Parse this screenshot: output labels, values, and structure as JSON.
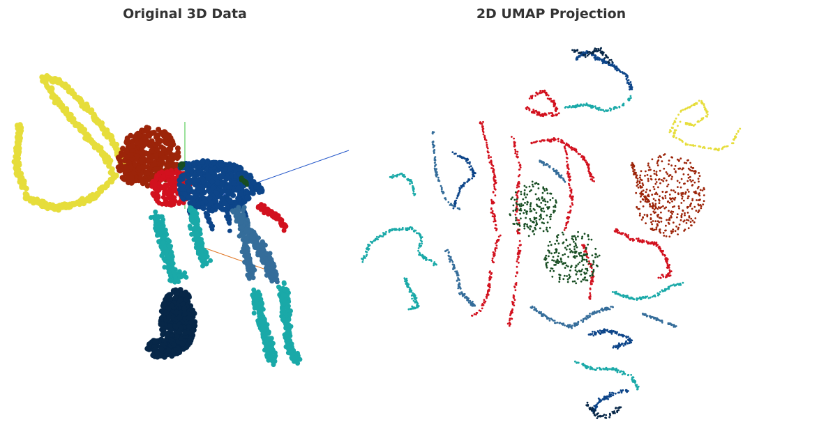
{
  "colors": {
    "title": "#333333",
    "tusk": "#e6dd3b",
    "head": "#9c2409",
    "neck": "#d2111e",
    "spine": "#0d4589",
    "ribs": "#0d4589",
    "front_leg": "#1aa9a8",
    "back_leg_upper": "#356d9a",
    "back_leg_lower": "#1aa9a8",
    "foot": "#072748",
    "trunk_dark": "#174d22",
    "axis_x": "#2457c9",
    "axis_y": "#39c33a",
    "axis_z": "#e0721e"
  },
  "chart_data": [
    {
      "type": "scatter",
      "subtype": "3d-point-cloud",
      "title": "Original 3D Data",
      "xlabel": "",
      "ylabel": "",
      "grid": false,
      "legend": "none",
      "series": [
        {
          "color": "#e6dd3b"
        },
        {
          "color": "#9c2409"
        },
        {
          "color": "#d2111e"
        },
        {
          "color": "#0d4589"
        },
        {
          "color": "#1aa9a8"
        },
        {
          "color": "#356d9a"
        },
        {
          "color": "#072748"
        },
        {
          "color": "#174d22"
        }
      ]
    },
    {
      "type": "scatter",
      "subtype": "2d-embedding",
      "title": "2D UMAP Projection",
      "xlabel": "",
      "ylabel": "",
      "grid": false,
      "legend": "none",
      "series": [
        {
          "color": "#e6dd3b"
        },
        {
          "color": "#9c2409"
        },
        {
          "color": "#d2111e"
        },
        {
          "color": "#0d4589"
        },
        {
          "color": "#1aa9a8"
        },
        {
          "color": "#356d9a"
        },
        {
          "color": "#072748"
        },
        {
          "color": "#174d22"
        }
      ]
    }
  ]
}
